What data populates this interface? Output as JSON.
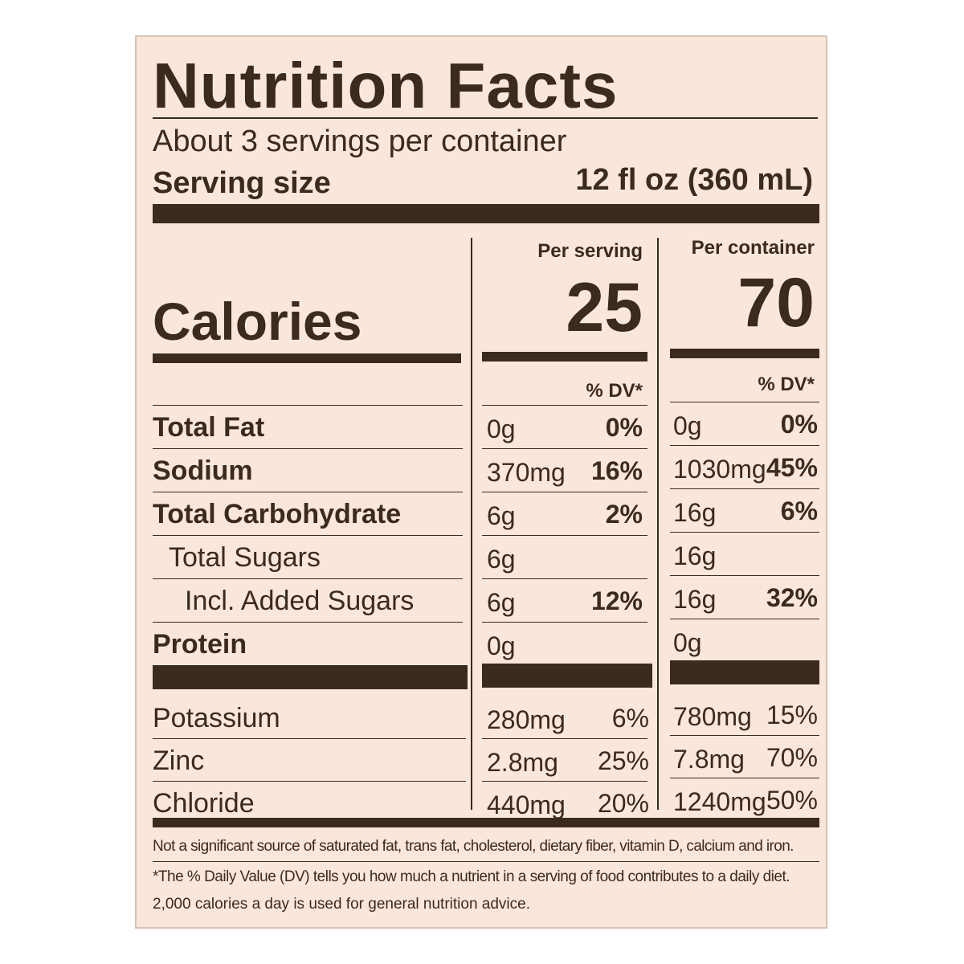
{
  "title": "Nutrition Facts",
  "servings_per_container": "About 3 servings per container",
  "serving_size_label": "Serving size",
  "serving_size_value": "12 fl oz (360 mL)",
  "columns": {
    "per_serving": "Per serving",
    "per_container": "Per container",
    "dv_header": "% DV*"
  },
  "calories": {
    "label": "Calories",
    "per_serving": "25",
    "per_container": "70"
  },
  "nutrients": [
    {
      "name": "Total Fat",
      "serv_amt": "0g",
      "serv_dv": "0%",
      "cont_amt": "0g",
      "cont_dv": "0%"
    },
    {
      "name": "Sodium",
      "serv_amt": "370mg",
      "serv_dv": "16%",
      "cont_amt": "1030mg",
      "cont_dv": "45%"
    },
    {
      "name": "Total Carbohydrate",
      "serv_amt": "6g",
      "serv_dv": "2%",
      "cont_amt": "16g",
      "cont_dv": "6%"
    },
    {
      "name": "Total Sugars",
      "serv_amt": "6g",
      "serv_dv": "",
      "cont_amt": "16g",
      "cont_dv": ""
    },
    {
      "name": "Incl. Added Sugars",
      "serv_amt": "6g",
      "serv_dv": "12%",
      "cont_amt": "16g",
      "cont_dv": "32%"
    },
    {
      "name": "Protein",
      "serv_amt": "0g",
      "serv_dv": "",
      "cont_amt": "0g",
      "cont_dv": ""
    }
  ],
  "minerals": [
    {
      "name": "Potassium",
      "serv_amt": "280mg",
      "serv_dv": "6%",
      "cont_amt": "780mg",
      "cont_dv": "15%"
    },
    {
      "name": "Zinc",
      "serv_amt": "2.8mg",
      "serv_dv": "25%",
      "cont_amt": "7.8mg",
      "cont_dv": "70%"
    },
    {
      "name": "Chloride",
      "serv_amt": "440mg",
      "serv_dv": "20%",
      "cont_amt": "1240mg",
      "cont_dv": "50%"
    }
  ],
  "footnotes": {
    "not_significant": "Not a significant source of saturated fat, trans fat, cholesterol, dietary fiber, vitamin D, calcium and iron.",
    "dv_line1": "*The % Daily Value (DV) tells you how much a nutrient in a serving of food contributes to a daily diet.",
    "dv_line2": "2,000 calories a day is used for general nutrition advice."
  },
  "colors": {
    "label_background": "#fbe6dc",
    "ink": "#3b2a1e"
  }
}
